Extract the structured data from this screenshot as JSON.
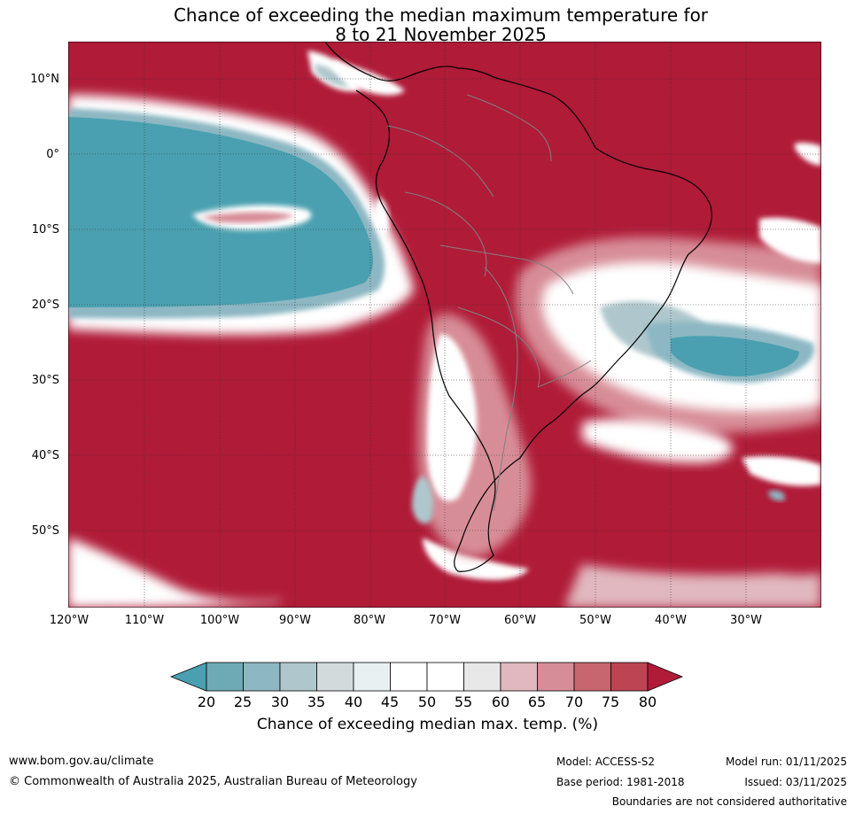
{
  "title": {
    "line1": "Chance of exceeding the median maximum temperature for",
    "line2": "8 to 21 November 2025"
  },
  "map": {
    "lat_labels": [
      "10°N",
      "0°",
      "10°S",
      "20°S",
      "30°S",
      "40°S",
      "50°S"
    ],
    "lon_labels": [
      "120°W",
      "110°W",
      "100°W",
      "90°W",
      "80°W",
      "70°W",
      "60°W",
      "50°W",
      "40°W",
      "30°W"
    ],
    "colors": {
      "hot": "#b01b38",
      "cool": "#4aa0b0",
      "neutral": "#ffffff",
      "land_border": "#000000",
      "country_border": "#808080"
    }
  },
  "colorbar": {
    "ticks": [
      "20",
      "25",
      "30",
      "35",
      "40",
      "45",
      "50",
      "55",
      "60",
      "65",
      "70",
      "75",
      "80"
    ],
    "colors": [
      "#4aa0b0",
      "#6eaab6",
      "#8cb7c3",
      "#afc7cc",
      "#d3dadb",
      "#e9f0f2",
      "#ffffff",
      "#ffffff",
      "#e8e8e8",
      "#e1b8bf",
      "#d78d97",
      "#c8666f",
      "#bd4452",
      "#b01b38"
    ],
    "label": "Chance of exceeding median max. temp. (%)"
  },
  "footer": {
    "website": "www.bom.gov.au/climate",
    "copyright": "© Commonwealth of Australia 2025, Australian Bureau of Meteorology",
    "model": "Model: ACCESS-S2",
    "base_period": "Base period: 1981-2018",
    "model_run": "Model run: 01/11/2025",
    "issued": "Issued: 03/11/2025",
    "disclaimer": "Boundaries are not considered authoritative"
  }
}
